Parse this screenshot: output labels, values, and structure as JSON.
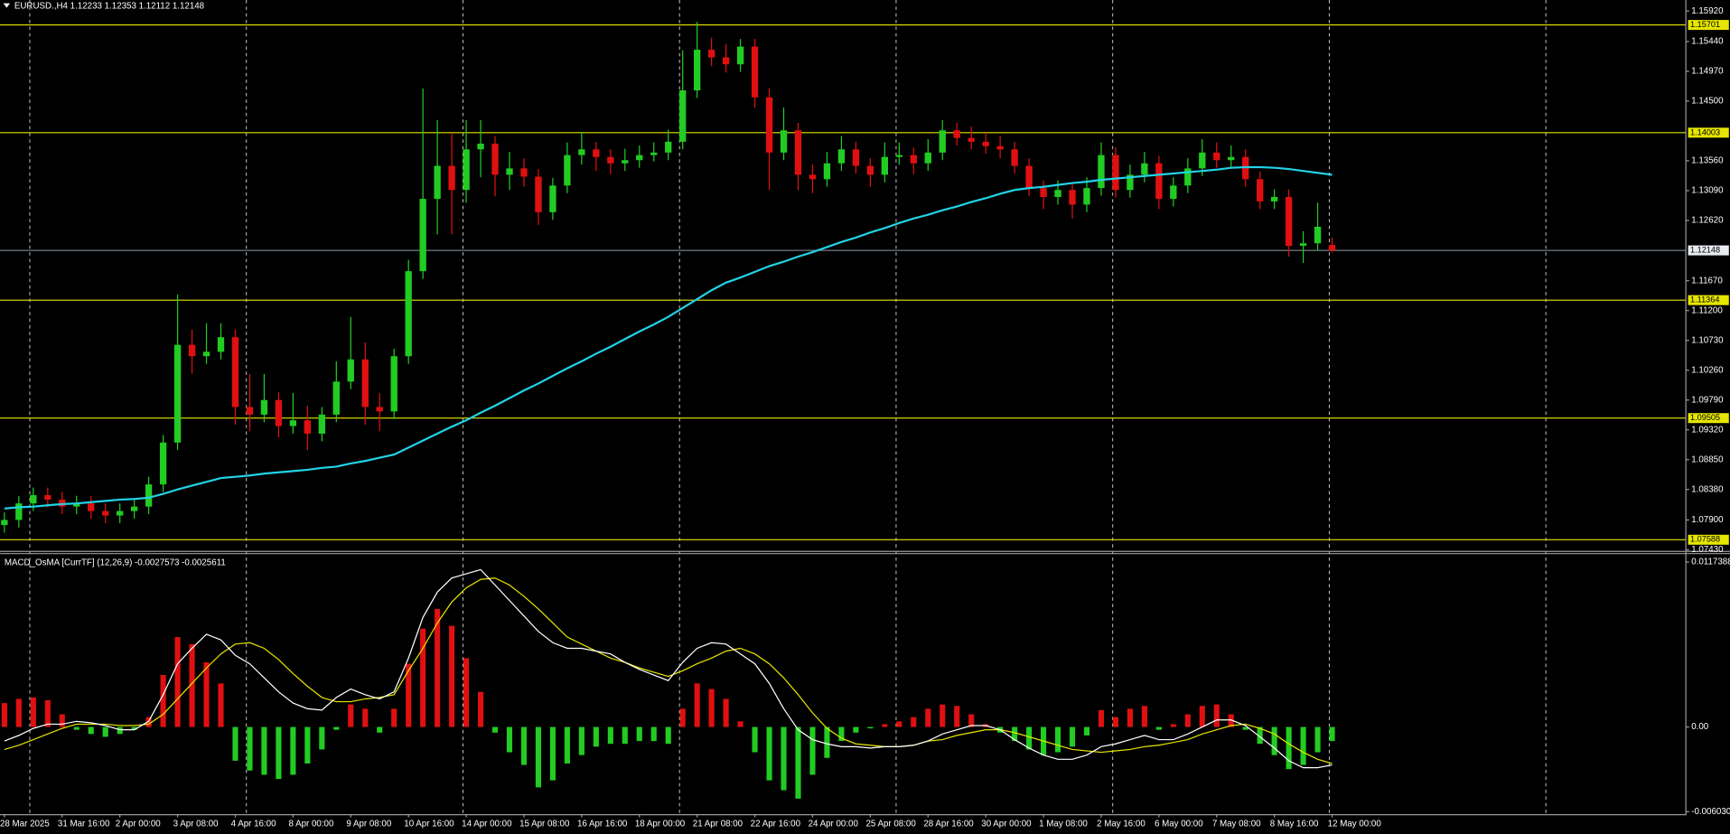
{
  "chart_data": [
    {
      "type": "candlestick",
      "title": "EURUSD.,H4  1.12233 1.12353 1.12112 1.12148",
      "categories": [
        "28 Mar 2025",
        null,
        null,
        null,
        "31 Mar 16:00",
        null,
        null,
        null,
        "2 Apr 00:00",
        null,
        null,
        null,
        "3 Apr 08:00",
        null,
        null,
        null,
        "4 Apr 16:00",
        null,
        null,
        null,
        "8 Apr 00:00",
        null,
        null,
        null,
        "9 Apr 08:00",
        null,
        null,
        null,
        "10 Apr 16:00",
        null,
        null,
        null,
        "14 Apr 00:00",
        null,
        null,
        null,
        "15 Apr 08:00",
        null,
        null,
        null,
        "16 Apr 16:00",
        null,
        null,
        null,
        "18 Apr 00:00",
        null,
        null,
        null,
        "21 Apr 08:00",
        null,
        null,
        null,
        "22 Apr 16:00",
        null,
        null,
        null,
        "24 Apr 00:00",
        null,
        null,
        null,
        "25 Apr 08:00",
        null,
        null,
        null,
        "28 Apr 16:00",
        null,
        null,
        null,
        "30 Apr 00:00",
        null,
        null,
        null,
        "1 May 08:00",
        null,
        null,
        null,
        "2 May 16:00",
        null,
        null,
        null,
        "6 May 00:00",
        null,
        null,
        null,
        "7 May 08:00",
        null,
        null,
        null,
        "8 May 16:00",
        null,
        null,
        null,
        "12 May 00:00"
      ],
      "open": [
        1.0782,
        1.079,
        1.0816,
        1.0829,
        1.0822,
        1.0811,
        1.0816,
        1.0804,
        1.0797,
        1.0804,
        1.0811,
        1.0846,
        1.0912,
        1.1066,
        1.1048,
        1.1055,
        1.1078,
        1.0968,
        1.0956,
        1.0979,
        1.0938,
        1.0947,
        1.0926,
        1.0956,
        1.1008,
        1.1043,
        1.0968,
        1.0961,
        1.1048,
        1.1182,
        1.1296,
        1.1348,
        1.131,
        1.1374,
        1.1383,
        1.1334,
        1.1344,
        1.1331,
        1.1275,
        1.1317,
        1.1365,
        1.1374,
        1.1362,
        1.1352,
        1.1357,
        1.1365,
        1.1369,
        1.1386,
        1.1467,
        1.1531,
        1.1519,
        1.1508,
        1.1536,
        1.1456,
        1.1369,
        1.1404,
        1.1334,
        1.1327,
        1.1352,
        1.1374,
        1.1348,
        1.1334,
        1.1362,
        1.1365,
        1.1352,
        1.1369,
        1.1404,
        1.1392,
        1.1386,
        1.1379,
        1.1374,
        1.1348,
        1.1313,
        1.1299,
        1.131,
        1.1287,
        1.1313,
        1.1365,
        1.131,
        1.1334,
        1.1352,
        1.1296,
        1.1317,
        1.1344,
        1.1369,
        1.1357,
        1.1362,
        1.1327,
        1.1292,
        1.1299,
        1.1222,
        1.1226,
        1.12233
      ],
      "high": [
        1.0802,
        1.0828,
        1.0841,
        1.0841,
        1.0834,
        1.0828,
        1.0828,
        1.0816,
        1.0816,
        1.0823,
        1.0858,
        1.0924,
        1.1145,
        1.109,
        1.11,
        1.11,
        1.109,
        1.102,
        1.102,
        1.0991,
        1.099,
        1.097,
        1.0968,
        1.104,
        1.111,
        1.107,
        1.099,
        1.106,
        1.12,
        1.147,
        1.142,
        1.14,
        1.142,
        1.142,
        1.1395,
        1.137,
        1.136,
        1.1343,
        1.1329,
        1.1385,
        1.14,
        1.1386,
        1.1374,
        1.1375,
        1.138,
        1.1385,
        1.1405,
        1.153,
        1.1575,
        1.155,
        1.154,
        1.1548,
        1.1548,
        1.147,
        1.144,
        1.1416,
        1.135,
        1.137,
        1.1395,
        1.1386,
        1.136,
        1.1385,
        1.1385,
        1.1377,
        1.139,
        1.142,
        1.1416,
        1.141,
        1.14,
        1.1395,
        1.1386,
        1.136,
        1.1325,
        1.1325,
        1.1322,
        1.133,
        1.1385,
        1.1377,
        1.135,
        1.137,
        1.1364,
        1.133,
        1.136,
        1.139,
        1.1385,
        1.138,
        1.1374,
        1.1339,
        1.1311,
        1.1311,
        1.1245,
        1.129,
        1.12353
      ],
      "low": [
        1.077,
        1.0778,
        1.0804,
        1.081,
        1.0799,
        1.0799,
        1.0792,
        1.0785,
        1.0785,
        1.0792,
        1.0799,
        1.0834,
        1.09,
        1.102,
        1.1036,
        1.1043,
        1.094,
        1.093,
        1.0944,
        1.092,
        1.0926,
        1.09,
        1.0914,
        1.0944,
        1.0996,
        1.094,
        1.093,
        1.0949,
        1.1036,
        1.117,
        1.124,
        1.124,
        1.129,
        1.133,
        1.13,
        1.131,
        1.1315,
        1.1255,
        1.1263,
        1.1305,
        1.135,
        1.134,
        1.1335,
        1.134,
        1.1345,
        1.1355,
        1.1357,
        1.1374,
        1.1455,
        1.1505,
        1.1495,
        1.1496,
        1.144,
        1.131,
        1.1357,
        1.131,
        1.1305,
        1.1315,
        1.134,
        1.1336,
        1.1315,
        1.1322,
        1.135,
        1.1335,
        1.134,
        1.1357,
        1.138,
        1.1374,
        1.1367,
        1.136,
        1.1336,
        1.13,
        1.128,
        1.1287,
        1.1265,
        1.1275,
        1.1301,
        1.1298,
        1.1298,
        1.1322,
        1.128,
        1.1284,
        1.1305,
        1.1332,
        1.1345,
        1.1345,
        1.1315,
        1.128,
        1.128,
        1.1205,
        1.1195,
        1.1214,
        1.12112
      ],
      "close": [
        1.079,
        1.0816,
        1.0829,
        1.0822,
        1.0811,
        1.0816,
        1.0804,
        1.0797,
        1.0804,
        1.0811,
        1.0846,
        1.0912,
        1.1066,
        1.1048,
        1.1055,
        1.1078,
        1.0968,
        1.0956,
        1.0979,
        1.0938,
        1.0947,
        1.0926,
        1.0956,
        1.1008,
        1.1043,
        1.0968,
        1.0961,
        1.1048,
        1.1182,
        1.1296,
        1.1348,
        1.131,
        1.1374,
        1.1383,
        1.1334,
        1.1344,
        1.1331,
        1.1275,
        1.1317,
        1.1365,
        1.1374,
        1.1362,
        1.1352,
        1.1357,
        1.1365,
        1.1369,
        1.1386,
        1.1467,
        1.1531,
        1.1519,
        1.1508,
        1.1536,
        1.1456,
        1.1369,
        1.1404,
        1.1334,
        1.1327,
        1.1352,
        1.1374,
        1.1348,
        1.1334,
        1.1362,
        1.1365,
        1.1352,
        1.1369,
        1.1404,
        1.1392,
        1.1386,
        1.1379,
        1.1374,
        1.1348,
        1.1313,
        1.1299,
        1.131,
        1.1287,
        1.1313,
        1.1365,
        1.131,
        1.1334,
        1.1352,
        1.1296,
        1.1317,
        1.1344,
        1.1369,
        1.1357,
        1.1362,
        1.1327,
        1.1292,
        1.1299,
        1.1222,
        1.1226,
        1.1252,
        1.12148
      ],
      "up_color": "#22cc22",
      "down_color": "#e01010",
      "ma": {
        "color": "#22d3e6",
        "values": [
          1.0808,
          1.081,
          1.0811,
          1.0813,
          1.0815,
          1.0816,
          1.0818,
          1.082,
          1.0822,
          1.0823,
          1.0825,
          1.0831,
          1.0838,
          1.0844,
          1.085,
          1.0856,
          1.0858,
          1.086,
          1.0863,
          1.0865,
          1.0867,
          1.0869,
          1.0872,
          1.0874,
          1.0879,
          1.0883,
          1.0888,
          1.0893,
          1.0904,
          1.0915,
          1.0926,
          1.0937,
          1.0947,
          1.0959,
          1.097,
          1.0982,
          1.0994,
          1.1005,
          1.1017,
          1.1029,
          1.104,
          1.1052,
          1.1063,
          1.1075,
          1.1087,
          1.1098,
          1.111,
          1.1124,
          1.1138,
          1.1152,
          1.1164,
          1.1172,
          1.1181,
          1.119,
          1.1197,
          1.1205,
          1.1212,
          1.122,
          1.1228,
          1.1235,
          1.1243,
          1.125,
          1.1258,
          1.1265,
          1.1271,
          1.1278,
          1.1284,
          1.1291,
          1.1297,
          1.1304,
          1.131,
          1.1313,
          1.1315,
          1.1318,
          1.1321,
          1.1323,
          1.1326,
          1.1328,
          1.133,
          1.1332,
          1.1334,
          1.1336,
          1.1338,
          1.134,
          1.1342,
          1.1345,
          1.1346,
          1.1346,
          1.1345,
          1.1343,
          1.134,
          1.1337,
          1.1334
        ]
      },
      "levels": [
        1.15701,
        1.14003,
        1.11364,
        1.09505,
        1.07588
      ],
      "level_color": "#e6e600",
      "price_line_color": "#8e9aa6",
      "ylim": [
        1.07413,
        1.16094
      ],
      "yticks": [
        {
          "value": 1.1592,
          "label": "1.15920"
        },
        {
          "value": 1.1544,
          "label": "1.15440"
        },
        {
          "value": 1.1497,
          "label": "1.14970"
        },
        {
          "value": 1.145,
          "label": "1.14500"
        },
        {
          "value": 1.1356,
          "label": "1.13560"
        },
        {
          "value": 1.1309,
          "label": "1.13090"
        },
        {
          "value": 1.1262,
          "label": "1.12620"
        },
        {
          "value": 1.1167,
          "label": "1.11670"
        },
        {
          "value": 1.112,
          "label": "1.11200"
        },
        {
          "value": 1.1073,
          "label": "1.10730"
        },
        {
          "value": 1.1026,
          "label": "1.10260"
        },
        {
          "value": 1.0979,
          "label": "1.09790"
        },
        {
          "value": 1.0932,
          "label": "1.09320"
        },
        {
          "value": 1.0885,
          "label": "1.08850"
        },
        {
          "value": 1.0838,
          "label": "1.08380"
        },
        {
          "value": 1.079,
          "label": "1.07900"
        },
        {
          "value": 1.0743,
          "label": "1.07430"
        }
      ],
      "grid": true
    },
    {
      "type": "macd",
      "title": "MACD_OsMA [CurrTF] (12,26,9) -0.0027573 -0.0025611",
      "histogram": {
        "up_color": "#e01010",
        "down_color": "#22cc22",
        "values": [
          0.0017,
          0.002,
          0.0021,
          0.0019,
          0.0009,
          -0.0002,
          -0.0005,
          -0.0007,
          -0.0005,
          -0.0002,
          0.0007,
          0.0037,
          0.0064,
          0.0059,
          0.0046,
          0.0031,
          -0.0024,
          -0.0031,
          -0.0034,
          -0.0037,
          -0.0034,
          -0.0026,
          -0.0016,
          -0.0002,
          0.0016,
          0.0013,
          -0.0004,
          0.0013,
          0.0045,
          0.007,
          0.0084,
          0.0072,
          0.0049,
          0.0025,
          -0.0004,
          -0.0018,
          -0.0027,
          -0.0043,
          -0.0038,
          -0.0026,
          -0.002,
          -0.0014,
          -0.0012,
          -0.0012,
          -0.001,
          -0.001,
          -0.0012,
          0.0013,
          0.0031,
          0.0027,
          0.002,
          0.0004,
          -0.0018,
          -0.0038,
          -0.0045,
          -0.0051,
          -0.0034,
          -0.0022,
          -0.001,
          -0.0004,
          -0.0001,
          0.0002,
          0.0004,
          0.0007,
          0.0013,
          0.0016,
          0.0015,
          0.0009,
          0.0002,
          -0.0004,
          -0.001,
          -0.0016,
          -0.002,
          -0.0018,
          -0.0014,
          -0.0006,
          0.0012,
          0.0007,
          0.0013,
          0.0015,
          -0.0002,
          0.0002,
          0.0009,
          0.0015,
          0.0016,
          0.0009,
          -0.0002,
          -0.0012,
          -0.002,
          -0.003,
          -0.0027,
          -0.0018,
          -0.001
        ]
      },
      "macd": {
        "color": "#ffffff",
        "values": [
          -0.001,
          -0.0006,
          -0.0001,
          0.0002,
          0.0002,
          0.0004,
          0.0003,
          0.0001,
          -0.0002,
          -0.0002,
          0.0004,
          0.0023,
          0.0045,
          0.0056,
          0.0066,
          0.0062,
          0.0051,
          0.0045,
          0.0035,
          0.0025,
          0.0017,
          0.0013,
          0.0012,
          0.0021,
          0.0027,
          0.0023,
          0.002,
          0.0025,
          0.0049,
          0.0078,
          0.0096,
          0.0106,
          0.0109,
          0.0112,
          0.0101,
          0.009,
          0.0079,
          0.0068,
          0.006,
          0.0056,
          0.0056,
          0.0054,
          0.0052,
          0.0046,
          0.0041,
          0.0037,
          0.0033,
          0.0046,
          0.0056,
          0.006,
          0.0059,
          0.0052,
          0.0045,
          0.0031,
          0.0013,
          -0.0002,
          -0.0009,
          -0.0012,
          -0.0014,
          -0.0014,
          -0.0015,
          -0.0014,
          -0.0014,
          -0.0013,
          -0.001,
          -0.0005,
          -0.0002,
          0.0001,
          0.0001,
          -0.0002,
          -0.0009,
          -0.0015,
          -0.002,
          -0.0023,
          -0.0023,
          -0.002,
          -0.0014,
          -0.0012,
          -0.0009,
          -0.0006,
          -0.0009,
          -0.0009,
          -0.0005,
          0.0,
          0.0005,
          0.0005,
          0.0001,
          -0.0007,
          -0.0015,
          -0.0024,
          -0.0029,
          -0.0029,
          -0.0027
        ]
      },
      "signal": {
        "color": "#e6e600",
        "values": [
          -0.0016,
          -0.0013,
          -0.0009,
          -0.0005,
          -0.0001,
          0.0002,
          0.0002,
          0.0002,
          0.0001,
          0.0001,
          0.0002,
          0.0009,
          0.002,
          0.0031,
          0.0042,
          0.0052,
          0.0059,
          0.006,
          0.0056,
          0.0048,
          0.0038,
          0.0029,
          0.0021,
          0.0018,
          0.0018,
          0.002,
          0.0021,
          0.0023,
          0.004,
          0.0056,
          0.0074,
          0.0089,
          0.0099,
          0.0105,
          0.0106,
          0.0101,
          0.0093,
          0.0084,
          0.0074,
          0.0064,
          0.0059,
          0.0054,
          0.0049,
          0.0046,
          0.0042,
          0.0039,
          0.0036,
          0.004,
          0.0045,
          0.0049,
          0.0054,
          0.0056,
          0.0052,
          0.0045,
          0.0035,
          0.0023,
          0.001,
          -0.0001,
          -0.0008,
          -0.0012,
          -0.0013,
          -0.0014,
          -0.0014,
          -0.0013,
          -0.001,
          -0.0009,
          -0.0006,
          -0.0004,
          -0.0002,
          -0.0002,
          -0.0004,
          -0.0007,
          -0.001,
          -0.0013,
          -0.0016,
          -0.0017,
          -0.0018,
          -0.0017,
          -0.0016,
          -0.0014,
          -0.0013,
          -0.0011,
          -0.0009,
          -0.0005,
          -0.0002,
          0.0001,
          0.0002,
          -0.0001,
          -0.0005,
          -0.0012,
          -0.0018,
          -0.0023,
          -0.0026
        ]
      },
      "ylim": [
        -0.0062,
        0.0123
      ],
      "yticks": [
        0.0117388,
        {
          "value": 0,
          "label": "0.00"
        },
        {
          "value": -0.00603,
          "label": "-0.006030"
        }
      ]
    }
  ]
}
